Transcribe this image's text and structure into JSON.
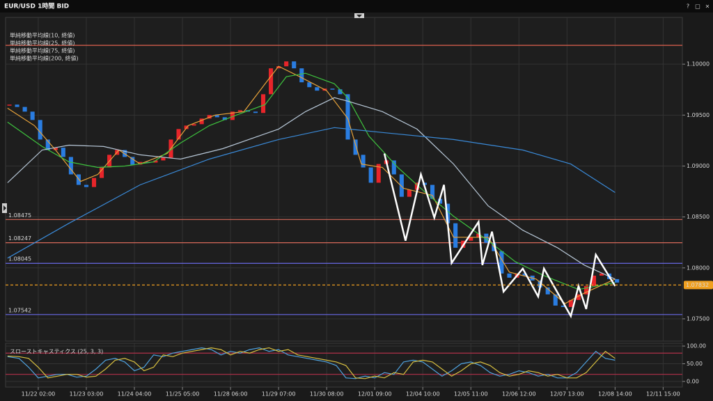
{
  "window_buttons": [
    "?",
    "□",
    "×"
  ],
  "chart_data": [
    {
      "type": "candlestick",
      "title": "EUR/USD 1時間 BID",
      "up_color": "#e8252a",
      "down_color": "#2a7de1",
      "x": [
        -15,
        -11,
        -7,
        -3,
        1,
        5,
        9,
        13,
        17,
        21,
        25,
        29,
        33,
        37,
        41,
        45,
        49,
        53,
        57,
        61,
        65,
        69,
        73,
        77,
        81,
        85,
        89,
        93,
        97,
        101,
        105,
        109,
        113,
        117,
        121,
        125,
        129,
        133,
        137,
        141,
        145,
        149,
        153,
        157,
        161,
        165,
        169,
        173,
        177,
        181,
        185,
        189,
        193,
        197,
        201,
        205,
        209,
        213,
        217,
        221,
        225,
        229,
        233,
        237,
        241,
        245,
        249,
        253,
        257,
        261,
        265,
        269,
        273,
        277,
        281,
        285,
        289,
        293,
        297,
        301
      ],
      "values": [
        1.09603,
        1.0958,
        1.09534,
        1.09452,
        1.0926,
        1.09157,
        1.0918,
        1.09089,
        1.08918,
        1.08815,
        1.08794,
        1.08883,
        1.08986,
        1.0911,
        1.09157,
        1.09089,
        1.09014,
        1.0904,
        1.09034,
        1.09055,
        1.09082,
        1.0926,
        1.09363,
        1.09397,
        1.09411,
        1.09466,
        1.095,
        1.09479,
        1.09452,
        1.09534,
        1.09548,
        1.09534,
        1.09521,
        1.09705,
        1.09959,
        1.09979,
        1.10027,
        1.09959,
        1.09822,
        1.09774,
        1.0974,
        1.0976,
        1.09753,
        1.09705,
        1.0926,
        1.0911,
        1.08986,
        1.08836,
        1.0902,
        1.09055,
        1.08918,
        1.08698,
        1.08767,
        1.08836,
        1.08815,
        1.08678,
        1.0863,
        1.08438,
        1.08198,
        1.08267,
        1.08301,
        1.08336,
        1.08246,
        1.08164,
        1.07945,
        1.07904,
        1.07945,
        1.07924,
        1.07876,
        1.07808,
        1.0774,
        1.0763,
        1.07616,
        1.07685,
        1.0774,
        1.07822,
        1.07924,
        1.07945,
        1.0789,
        1.07856
      ],
      "series": [
        {
          "name": "単純移動平均線(10, 終値)",
          "color": "#e8a33a",
          "x": [
            -16,
            -2,
            9,
            22,
            31,
            42,
            53,
            67,
            78,
            92,
            107,
            118,
            125,
            136,
            150,
            161,
            168,
            179,
            190,
            205,
            216,
            234,
            245,
            259,
            274,
            284,
            300
          ],
          "values": [
            1.09568,
            1.09397,
            1.09157,
            1.08849,
            1.08918,
            1.09157,
            1.0902,
            1.09123,
            1.09397,
            1.095,
            1.09534,
            1.09808,
            1.09979,
            1.09877,
            1.0974,
            1.09466,
            1.0902,
            1.08986,
            1.08781,
            1.08712,
            1.08301,
            1.08301,
            1.07959,
            1.0789,
            1.0765,
            1.07753,
            1.0789
          ]
        },
        {
          "name": "単純移動平均線(25, 終値)",
          "color": "#3ec43e",
          "x": [
            -16,
            2,
            16,
            31,
            45,
            60,
            74,
            89,
            103,
            118,
            129,
            139,
            154,
            161,
            172,
            187,
            201,
            216,
            234,
            248,
            263,
            281,
            300
          ],
          "values": [
            1.09431,
            1.09192,
            1.09041,
            1.08986,
            1.09,
            1.09041,
            1.09226,
            1.09397,
            1.095,
            1.09603,
            1.09877,
            1.09911,
            1.09808,
            1.09671,
            1.09294,
            1.08986,
            1.08746,
            1.08507,
            1.08267,
            1.08062,
            1.07924,
            1.07788,
            1.07856
          ]
        },
        {
          "name": "単純移動平均線(75, 終値)",
          "color": "#b8c8d8",
          "x": [
            -16,
            2,
            16,
            34,
            53,
            74,
            96,
            125,
            139,
            154,
            161,
            179,
            197,
            216,
            234,
            252,
            270,
            284,
            300
          ],
          "values": [
            1.08836,
            1.09157,
            1.09205,
            1.09192,
            1.0911,
            1.09068,
            1.09171,
            1.09363,
            1.09534,
            1.09671,
            1.09637,
            1.09534,
            1.09363,
            1.0902,
            1.08609,
            1.0837,
            1.08198,
            1.08027,
            1.0789
          ]
        },
        {
          "name": "単純移動平均線(200, 終値)",
          "color": "#3a8ad8",
          "x": [
            -16,
            16,
            53,
            89,
            125,
            154,
            179,
            216,
            252,
            277,
            300
          ],
          "values": [
            1.08096,
            1.08438,
            1.08815,
            1.09068,
            1.0926,
            1.09377,
            1.09329,
            1.0926,
            1.09157,
            1.0902,
            1.0874
          ]
        }
      ],
      "zigzag": {
        "color": "#ffffff",
        "x": [
          180,
          191,
          199,
          206,
          211,
          215,
          229,
          231,
          236,
          242,
          252,
          260,
          263,
          277,
          281,
          285,
          290,
          300
        ],
        "values": [
          1.09123,
          1.08267,
          1.08918,
          1.08493,
          1.08815,
          1.08048,
          1.08452,
          1.08027,
          1.08356,
          1.07767,
          1.07993,
          1.07719,
          1.07993,
          1.07527,
          1.07822,
          1.07596,
          1.0813,
          1.07822
        ]
      },
      "resistance_line": {
        "value": 1.10185,
        "color": "#e0604e"
      },
      "levels": [
        {
          "value": 1.08475,
          "color": "#d86a5a"
        },
        {
          "value": 1.08247,
          "color": "#d86a5a"
        },
        {
          "value": 1.08045,
          "color": "#6a6ae8"
        },
        {
          "value": 1.07542,
          "color": "#6a6ae8"
        }
      ],
      "last_price": {
        "value": 1.07832,
        "color": "#f0a020"
      },
      "xlim": [
        -17,
        335
      ],
      "xticks": [
        {
          "value": 0,
          "label": "11/22 02:00"
        },
        {
          "value": 25,
          "label": "11/23 03:00"
        },
        {
          "value": 50,
          "label": "11/24 04:00"
        },
        {
          "value": 75,
          "label": "11/25 05:00"
        },
        {
          "value": 100,
          "label": "11/28 06:00"
        },
        {
          "value": 125,
          "label": "11/29 07:00"
        },
        {
          "value": 150,
          "label": "11/30 08:00"
        },
        {
          "value": 175,
          "label": "12/01 09:00"
        },
        {
          "value": 200,
          "label": "12/04 10:00"
        },
        {
          "value": 225,
          "label": "12/05 11:00"
        },
        {
          "value": 250,
          "label": "12/06 12:00"
        },
        {
          "value": 275,
          "label": "12/07 13:00"
        },
        {
          "value": 300,
          "label": "12/08 14:00"
        },
        {
          "value": 325,
          "label": "12/11 15:00"
        }
      ],
      "ylim": [
        1.07281,
        1.10459
      ],
      "yticks": [
        {
          "value": 1.075,
          "label": "1.07500"
        },
        {
          "value": 1.08,
          "label": "1.08000"
        },
        {
          "value": 1.085,
          "label": "1.08500"
        },
        {
          "value": 1.09,
          "label": "1.09000"
        },
        {
          "value": 1.095,
          "label": "1.09500"
        },
        {
          "value": 1.1,
          "label": "1.10000"
        }
      ],
      "grid": true
    },
    {
      "type": "line",
      "title": "スローストキャスティクス (25, 3, 3)",
      "series": [
        {
          "color": "#4fa3e0",
          "x": [
            -16,
            -10,
            -5,
            0,
            5,
            10,
            15,
            20,
            25,
            30,
            35,
            40,
            45,
            50,
            55,
            60,
            65,
            70,
            75,
            80,
            85,
            90,
            95,
            100,
            105,
            110,
            115,
            120,
            125,
            130,
            135,
            140,
            145,
            150,
            155,
            160,
            165,
            170,
            175,
            180,
            185,
            190,
            195,
            200,
            205,
            210,
            215,
            220,
            225,
            230,
            235,
            240,
            245,
            250,
            255,
            260,
            265,
            270,
            275,
            280,
            285,
            290,
            295,
            300
          ],
          "values": [
            70,
            65,
            40,
            10,
            15,
            20,
            20,
            12,
            15,
            35,
            60,
            65,
            55,
            30,
            40,
            75,
            70,
            80,
            85,
            90,
            95,
            90,
            75,
            85,
            80,
            90,
            95,
            85,
            90,
            75,
            70,
            65,
            60,
            55,
            45,
            10,
            8,
            15,
            10,
            25,
            20,
            55,
            60,
            55,
            35,
            15,
            30,
            50,
            55,
            45,
            25,
            15,
            20,
            30,
            25,
            15,
            20,
            10,
            10,
            25,
            55,
            85,
            65,
            60
          ]
        },
        {
          "color": "#d8c040",
          "x": [
            -16,
            -10,
            -5,
            0,
            5,
            10,
            15,
            20,
            25,
            30,
            35,
            40,
            45,
            50,
            55,
            60,
            65,
            70,
            75,
            80,
            85,
            90,
            95,
            100,
            105,
            110,
            115,
            120,
            125,
            130,
            135,
            140,
            145,
            150,
            155,
            160,
            165,
            170,
            175,
            180,
            185,
            190,
            195,
            200,
            205,
            210,
            215,
            220,
            225,
            230,
            235,
            240,
            245,
            250,
            255,
            260,
            265,
            270,
            275,
            280,
            285,
            290,
            295,
            300
          ],
          "values": [
            72,
            70,
            65,
            40,
            10,
            15,
            20,
            20,
            12,
            15,
            35,
            60,
            65,
            55,
            30,
            40,
            75,
            70,
            80,
            85,
            90,
            95,
            90,
            75,
            85,
            80,
            90,
            95,
            85,
            90,
            75,
            70,
            65,
            60,
            55,
            45,
            10,
            8,
            15,
            10,
            25,
            20,
            55,
            60,
            55,
            35,
            15,
            30,
            50,
            55,
            45,
            25,
            15,
            20,
            30,
            25,
            15,
            20,
            10,
            10,
            25,
            55,
            85,
            65
          ]
        }
      ],
      "levels": [
        {
          "value": 80,
          "color": "#b0304a"
        },
        {
          "value": 20,
          "color": "#b0304a"
        }
      ],
      "xlim": [
        -17,
        335
      ],
      "ylim": [
        -16,
        108
      ],
      "yticks": [
        {
          "value": 0,
          "label": "0.00"
        },
        {
          "value": 50,
          "label": "50.00"
        },
        {
          "value": 100,
          "label": "100.00"
        }
      ],
      "grid": true
    }
  ]
}
